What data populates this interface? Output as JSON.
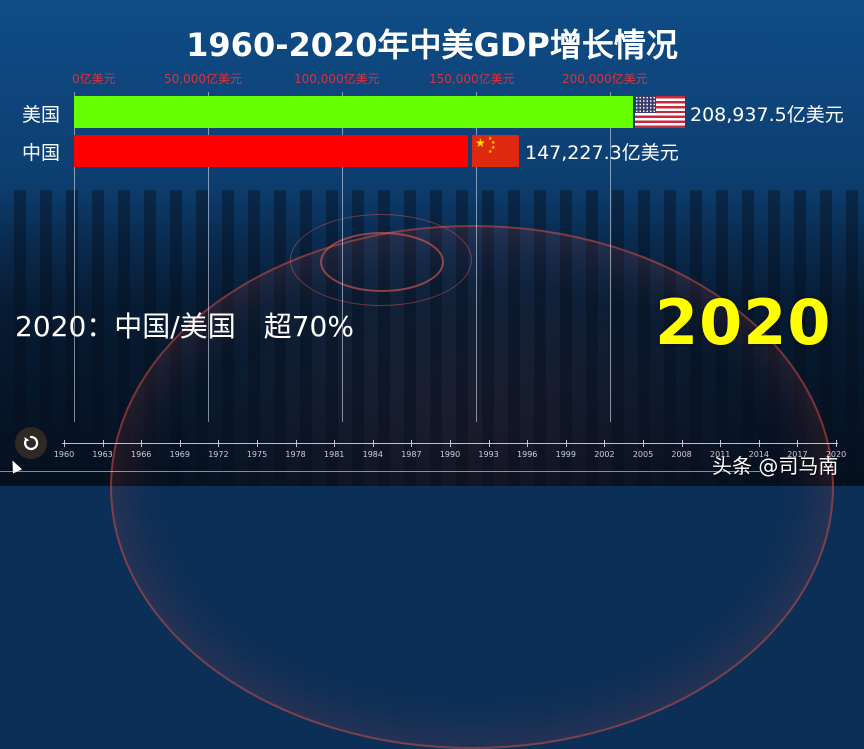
{
  "title": "1960-2020年中美GDP增长情况",
  "chart_data": {
    "type": "bar",
    "orientation": "horizontal",
    "title": "1960-2020年中美GDP增长情况",
    "year": "2020",
    "categories": [
      "美国",
      "中国"
    ],
    "values": [
      208937.5,
      147227.3
    ],
    "value_labels": [
      "208,937.5亿美元",
      "147,227.3亿美元"
    ],
    "unit": "亿美元",
    "colors": [
      "#66ff00",
      "#ff0000"
    ],
    "xlim": [
      0,
      220000
    ],
    "x_ticks": [
      0,
      50000,
      100000,
      150000,
      200000
    ],
    "x_tick_labels": [
      "0亿美元",
      "50,000亿美元",
      "100,000亿美元",
      "150,000亿美元",
      "200,000亿美元"
    ],
    "grid": true,
    "annotation": "2020：中国/美国　超70%"
  },
  "axis": {
    "labels": [
      "0亿美元",
      "50,000亿美元",
      "100,000亿美元",
      "150,000亿美元",
      "200,000亿美元"
    ]
  },
  "bars": [
    {
      "label": "美国",
      "value_text": "208,937.5亿美元",
      "flag": "us-flag-icon",
      "color": "#66ff00"
    },
    {
      "label": "中国",
      "value_text": "147,227.3亿美元",
      "flag": "cn-flag-icon",
      "color": "#ff0000"
    }
  ],
  "subtitle": "2020：中国/美国　超70%",
  "current_year": "2020",
  "timeline": {
    "ticks": [
      "1960",
      "1963",
      "1966",
      "1969",
      "1972",
      "1975",
      "1978",
      "1981",
      "1984",
      "1987",
      "1990",
      "1993",
      "1996",
      "1999",
      "2002",
      "2005",
      "2008",
      "2011",
      "2014",
      "2017",
      "2020"
    ],
    "replay_icon": "replay-icon"
  },
  "watermark": "头条 @司马南"
}
